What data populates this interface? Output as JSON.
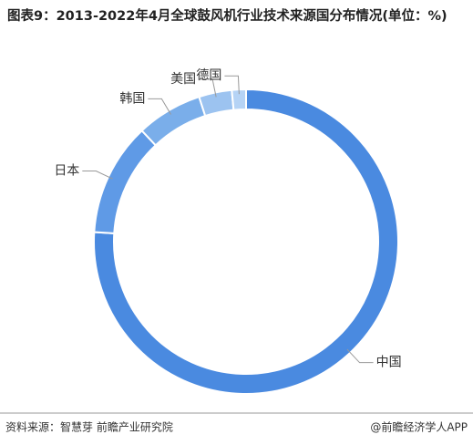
{
  "chart_data": {
    "type": "donut",
    "title": "图表9：2013-2022年4月全球鼓风机行业技术来源国分布情况(单位：%)",
    "categories": [
      "中国",
      "日本",
      "韩国",
      "美国",
      "德国"
    ],
    "values": [
      76,
      12,
      7,
      3.5,
      1.5
    ],
    "colors": [
      "#4a8ae0",
      "#5f9ae6",
      "#7aaeea",
      "#9cc3f0",
      "#b5d3f5"
    ],
    "source": "资料来源：智慧芽 前瞻产业研究院",
    "credit": "@前瞻经济学人APP"
  }
}
